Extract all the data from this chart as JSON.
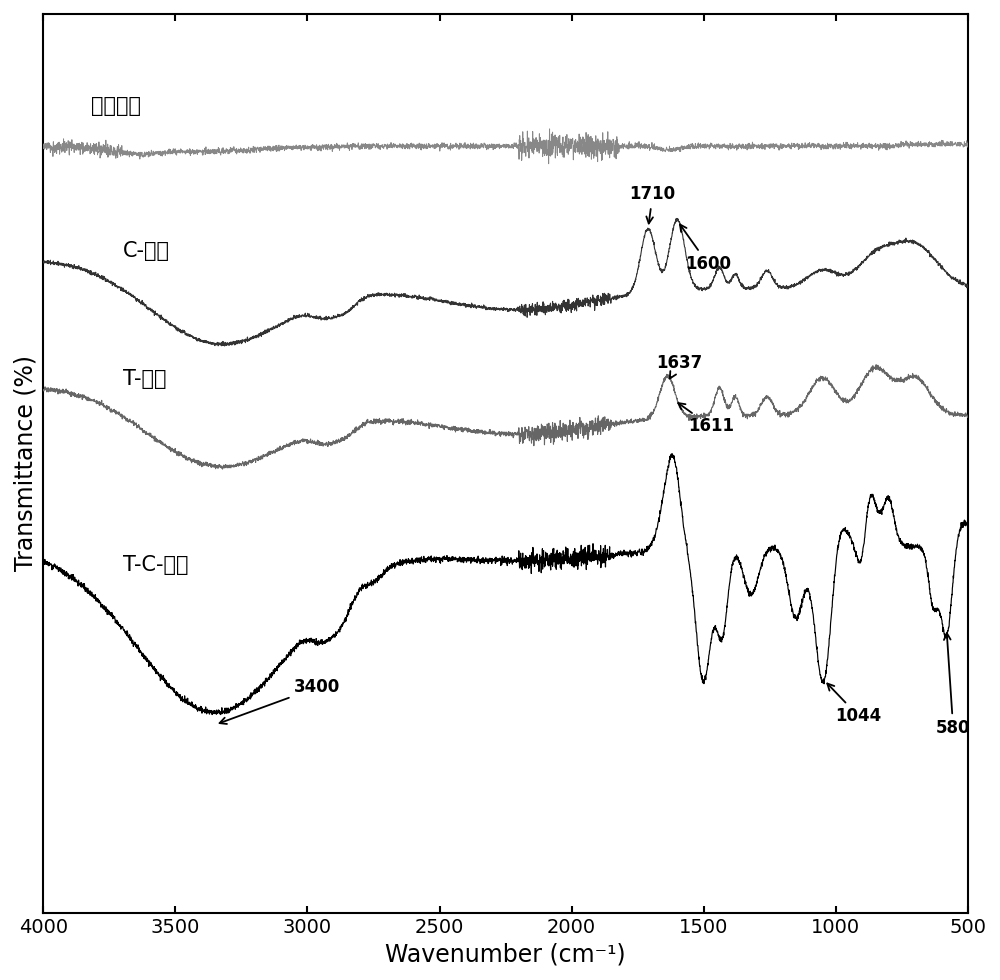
{
  "xlabel": "Wavenumber (cm⁻¹)",
  "ylabel": "Transmittance (%)",
  "xlim": [
    4000,
    500
  ],
  "labels": {
    "blank": "空白样品",
    "C": "C-样品",
    "T": "T-样品",
    "TC": "T-C-样品"
  },
  "colors": {
    "blank": "#888888",
    "C": "#333333",
    "T": "#666666",
    "TC": "#000000"
  },
  "offsets": {
    "blank": 0.92,
    "C": 0.62,
    "T": 0.38,
    "TC": 0.0
  },
  "xticks": [
    4000,
    3500,
    3000,
    2500,
    2000,
    1500,
    1000,
    500
  ],
  "xtick_labels": [
    "4000",
    "3500",
    "3000",
    "2500",
    "2000",
    "1500",
    "1000",
    "500"
  ]
}
